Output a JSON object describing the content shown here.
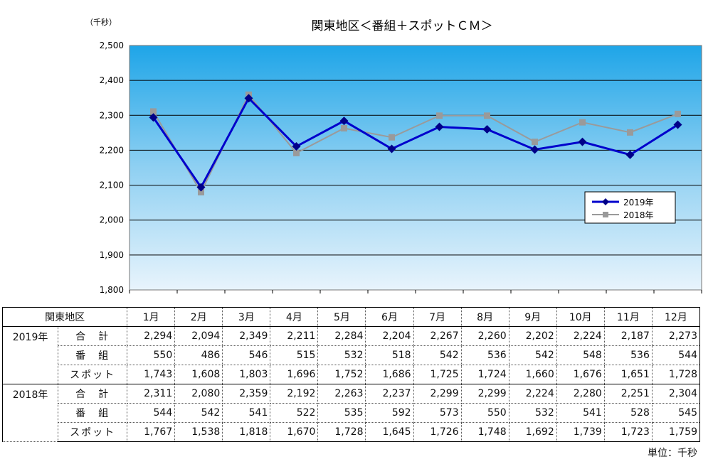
{
  "chart_data": {
    "type": "line",
    "title": "関東地区＜番組＋スポットＣＭ＞",
    "unit_label": "（千秒）",
    "categories": [
      "1月",
      "2月",
      "3月",
      "4月",
      "5月",
      "6月",
      "7月",
      "8月",
      "9月",
      "10月",
      "11月",
      "12月"
    ],
    "ylim": [
      1800,
      2500
    ],
    "y_ticks": [
      "1,800",
      "1,900",
      "2,000",
      "2,100",
      "2,200",
      "2,300",
      "2,400",
      "2,500"
    ],
    "grid": true,
    "legend_position": "right",
    "series": [
      {
        "name": "2019年",
        "color": "#0000cc",
        "marker": "diamond",
        "values": [
          2294,
          2094,
          2349,
          2211,
          2284,
          2204,
          2267,
          2260,
          2202,
          2224,
          2187,
          2273
        ]
      },
      {
        "name": "2018年",
        "color": "#9a9a9a",
        "marker": "square",
        "values": [
          2311,
          2080,
          2359,
          2192,
          2263,
          2237,
          2299,
          2299,
          2224,
          2280,
          2251,
          2304
        ]
      }
    ]
  },
  "table": {
    "corner": "関東地区",
    "months": [
      "1月",
      "2月",
      "3月",
      "4月",
      "5月",
      "6月",
      "7月",
      "8月",
      "9月",
      "10月",
      "11月",
      "12月"
    ],
    "groups": [
      {
        "year": "2019年",
        "rows": [
          {
            "label": "合　計",
            "values": [
              "2,294",
              "2,094",
              "2,349",
              "2,211",
              "2,284",
              "2,204",
              "2,267",
              "2,260",
              "2,202",
              "2,224",
              "2,187",
              "2,273"
            ]
          },
          {
            "label": "番　組",
            "values": [
              "550",
              "486",
              "546",
              "515",
              "532",
              "518",
              "542",
              "536",
              "542",
              "548",
              "536",
              "544"
            ]
          },
          {
            "label": "スポット",
            "values": [
              "1,743",
              "1,608",
              "1,803",
              "1,696",
              "1,752",
              "1,686",
              "1,725",
              "1,724",
              "1,660",
              "1,676",
              "1,651",
              "1,728"
            ]
          }
        ]
      },
      {
        "year": "2018年",
        "rows": [
          {
            "label": "合　計",
            "values": [
              "2,311",
              "2,080",
              "2,359",
              "2,192",
              "2,263",
              "2,237",
              "2,299",
              "2,299",
              "2,224",
              "2,280",
              "2,251",
              "2,304"
            ]
          },
          {
            "label": "番　組",
            "values": [
              "544",
              "542",
              "541",
              "522",
              "535",
              "592",
              "573",
              "550",
              "532",
              "541",
              "528",
              "545"
            ]
          },
          {
            "label": "スポット",
            "values": [
              "1,767",
              "1,538",
              "1,818",
              "1,670",
              "1,728",
              "1,645",
              "1,726",
              "1,748",
              "1,692",
              "1,739",
              "1,723",
              "1,759"
            ]
          }
        ]
      }
    ]
  },
  "footer": {
    "unit": "単位：千秒"
  }
}
